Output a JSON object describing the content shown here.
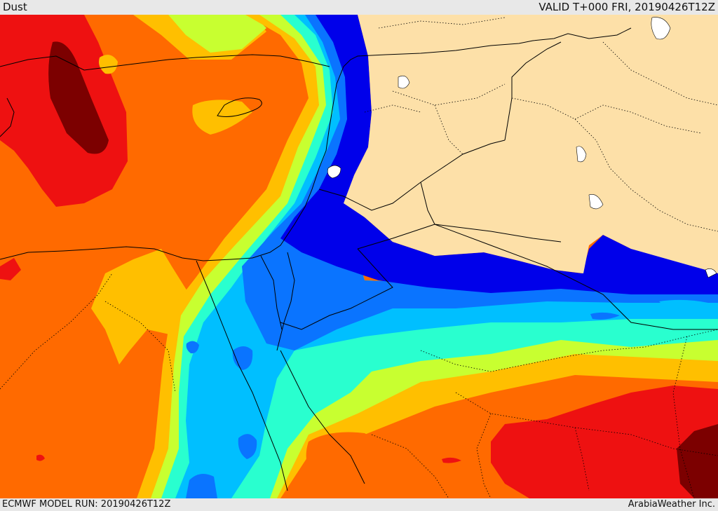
{
  "header": {
    "product": "Dust",
    "valid": "VALID T+000 FRI, 20190426T12Z"
  },
  "footer": {
    "model_run": "ECMWF MODEL RUN: 20190426T12Z",
    "credit": "ArabiaWeather Inc."
  },
  "palette": {
    "land_no_data": "#fde0a8",
    "dark_red": "#7c0000",
    "red": "#ee1111",
    "orange": "#ff6a00",
    "amber": "#ffbf00",
    "yellow_green": "#c8ff30",
    "teal": "#29ffcf",
    "light_blue": "#00bfff",
    "blue": "#0a74ff",
    "deep_blue": "#0000ea",
    "water_body": "#ffffff",
    "border": "#000000"
  }
}
